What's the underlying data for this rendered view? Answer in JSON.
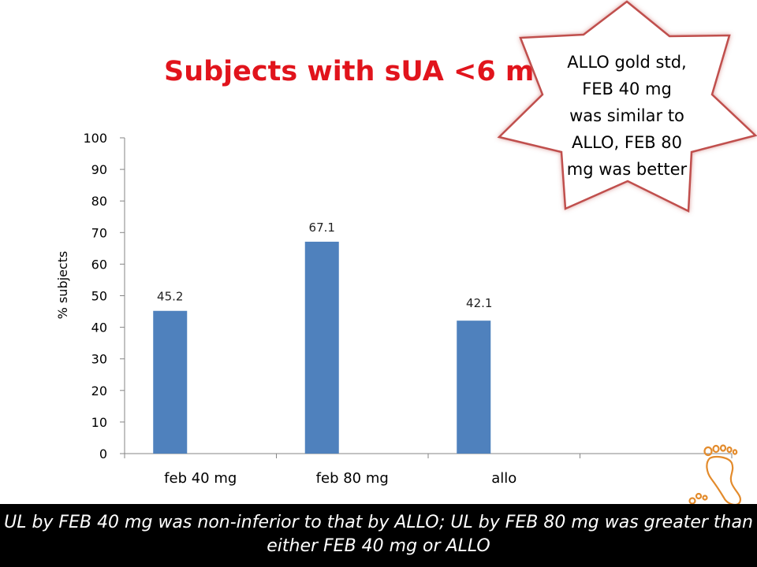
{
  "slide": {
    "title": "Subjects with sUA <6 m",
    "callout_lines": [
      "ALLO gold std,",
      "FEB 40 mg",
      "was similar to",
      "ALLO, FEB 80",
      "mg was better"
    ],
    "footer_lines": [
      "UL by FEB 40 mg was non-inferior to that by ALLO; UL by FEB 80 mg was greater than",
      "either FEB 40 mg or ALLO"
    ],
    "decoration_icon": "footprints-icon"
  },
  "chart_data": {
    "type": "bar",
    "categories": [
      "feb 40 mg",
      "feb 80 mg",
      "allo",
      ""
    ],
    "values": [
      45.2,
      67.1,
      42.1,
      null
    ],
    "data_labels": [
      "45.2",
      "67.1",
      "42.1",
      ""
    ],
    "ylabel": "% subjects",
    "xlabel": "",
    "ylim": [
      0,
      100
    ],
    "yticks": [
      0,
      10,
      20,
      30,
      40,
      50,
      60,
      70,
      80,
      90,
      100
    ],
    "grid": false,
    "legend": "none",
    "colors": {
      "bar": "#4f81bd",
      "title": "#e1141c",
      "callout_border": "#c0504d",
      "footer_bg": "#000000",
      "footer_text": "#ffffff",
      "decoration": "#e38b2c"
    }
  }
}
